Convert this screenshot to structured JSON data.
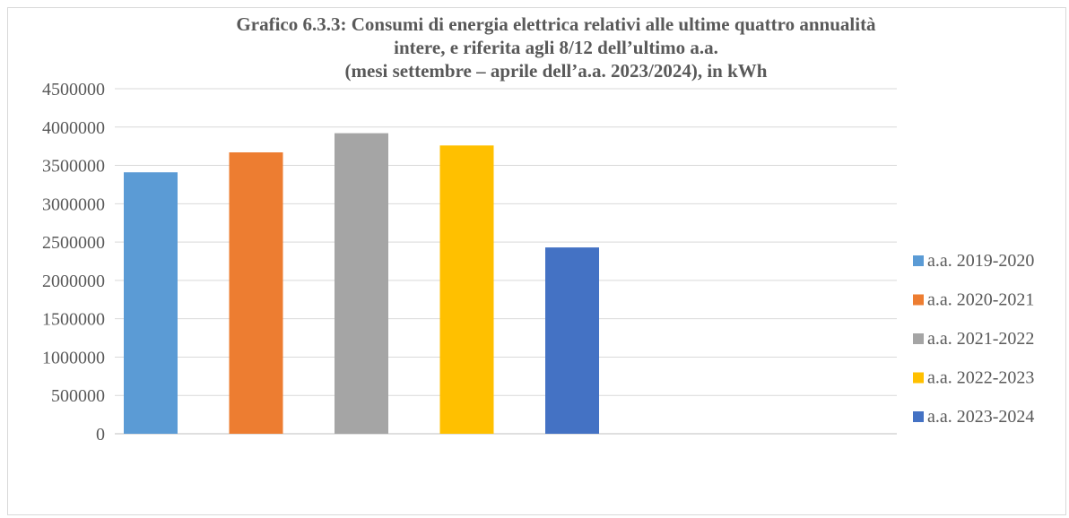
{
  "chart_data": {
    "type": "bar",
    "title_lines": [
      "Grafico 6.3.3: Consumi di energia elettrica relativi alle ultime quattro annualità",
      "intere, e riferita agli 8/12 dell’ultimo a.a.",
      "(mesi settembre – aprile dell’a.a. 2023/2024), in kWh"
    ],
    "xlabel": "",
    "ylabel": "",
    "ylim": [
      0,
      4500000
    ],
    "yticks": [
      "0",
      "500000",
      "1000000",
      "1500000",
      "2000000",
      "2500000",
      "3000000",
      "3500000",
      "4000000",
      "4500000"
    ],
    "grid": true,
    "legend_position": "right",
    "series": [
      {
        "name": "a.a. 2019-2020",
        "value": 3410000,
        "color": "#5B9BD5"
      },
      {
        "name": "a.a. 2020-2021",
        "value": 3670000,
        "color": "#ED7D31"
      },
      {
        "name": "a.a. 2021-2022",
        "value": 3920000,
        "color": "#A5A5A5"
      },
      {
        "name": "a.a. 2022-2023",
        "value": 3760000,
        "color": "#FFC000"
      },
      {
        "name": "a.a. 2023-2024",
        "value": 2430000,
        "color": "#4472C4"
      }
    ]
  }
}
